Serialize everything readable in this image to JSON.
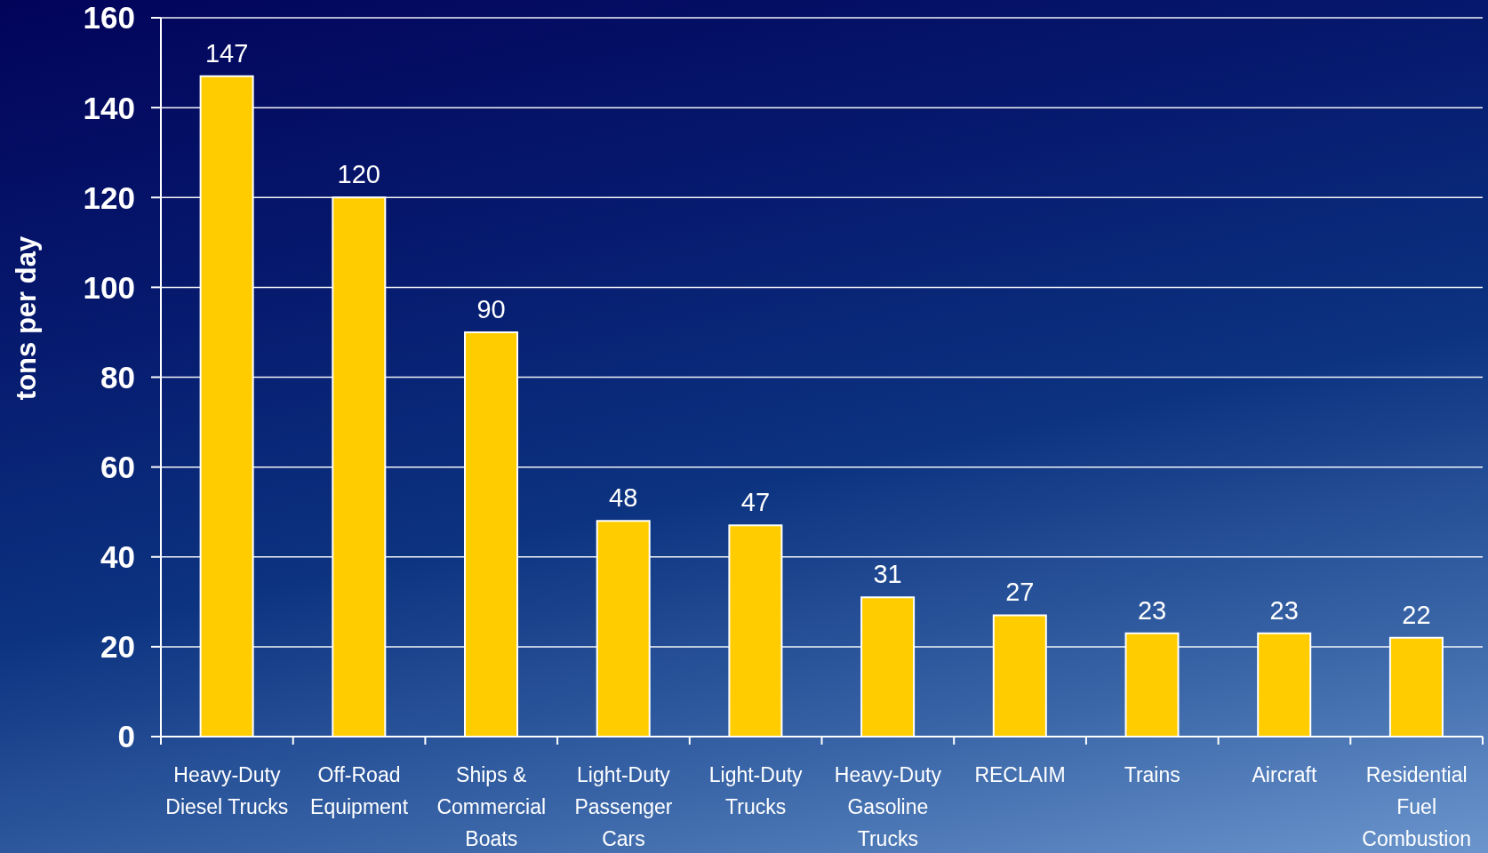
{
  "chart_data": {
    "type": "bar",
    "ylabel": "tons per day",
    "categories": [
      "Heavy-Duty Diesel Trucks",
      "Off-Road Equipment",
      "Ships & Commercial Boats",
      "Light-Duty Passenger Cars",
      "Light-Duty Trucks",
      "Heavy-Duty Gasoline Trucks",
      "RECLAIM",
      "Trains",
      "Aircraft",
      "Residential Fuel Combustion"
    ],
    "values": [
      147,
      120,
      90,
      48,
      47,
      31,
      27,
      23,
      23,
      22
    ],
    "color": "#ffcc00",
    "ylim": [
      0,
      160
    ],
    "yticks": [
      0,
      20,
      40,
      60,
      80,
      100,
      120,
      140,
      160
    ],
    "grid": "y",
    "data_labels": true
  }
}
